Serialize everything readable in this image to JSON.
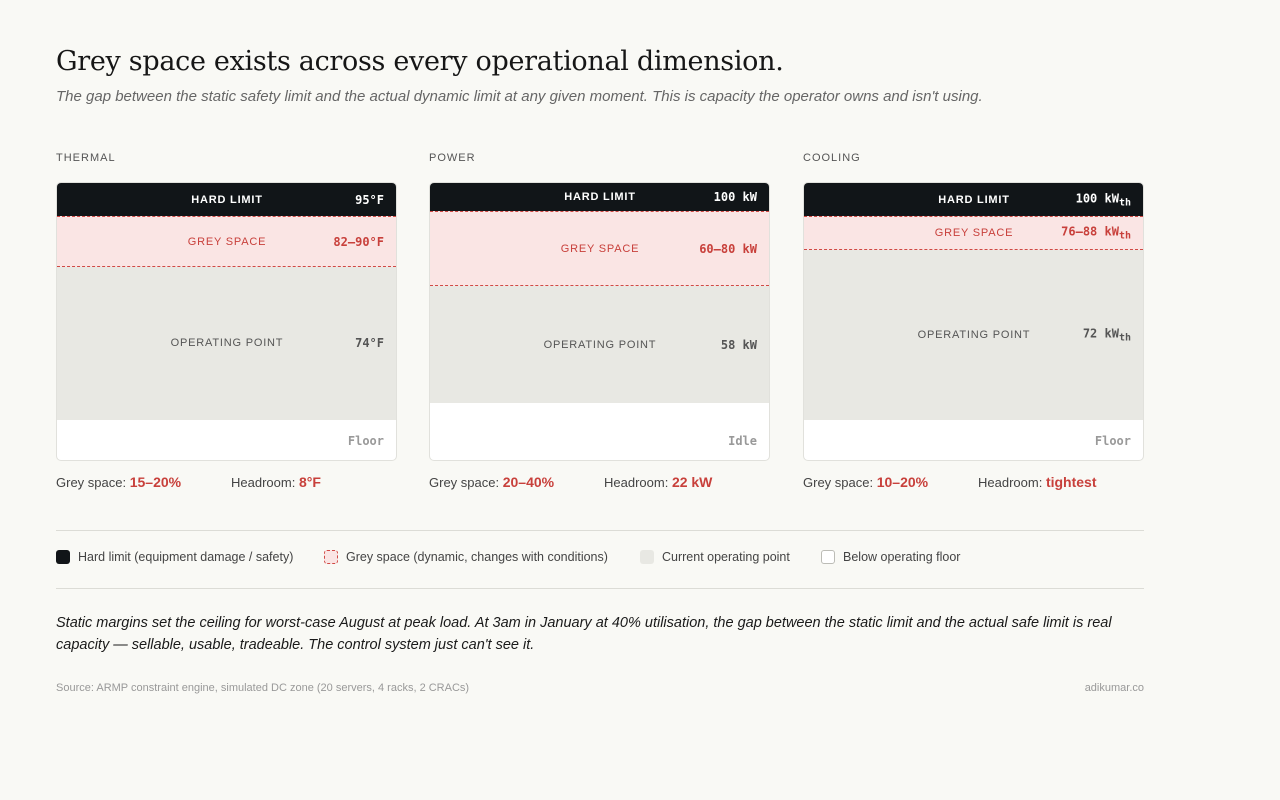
{
  "title": "Grey space exists across every operational dimension.",
  "subtitle": "The gap between the static safety limit and the actual dynamic limit at any given moment. This is capacity the operator owns and isn't using.",
  "band_labels": {
    "hard": "HARD LIMIT",
    "grey": "GREY SPACE",
    "operating": "OPERATING POINT"
  },
  "stat_labels": {
    "grey": "Grey space:",
    "headroom": "Headroom:"
  },
  "colors": {
    "hard_limit": "#111518",
    "grey_space_fill": "#fae5e4",
    "grey_space_line": "#d04a45",
    "operating": "#e8e8e3",
    "floor": "#ffffff",
    "accent_red": "#c8403b"
  },
  "chart_data": [
    {
      "type": "stacked-band",
      "panel": "THERMAL",
      "bands": [
        {
          "key": "hard",
          "value": "95°F"
        },
        {
          "key": "grey",
          "value": "82–90°F"
        },
        {
          "key": "operating",
          "value": "74°F"
        },
        {
          "key": "floor",
          "value": "Floor"
        }
      ],
      "band_fractions": {
        "hard": 0.12,
        "grey": 0.18,
        "operating": 0.55,
        "floor": 0.15
      },
      "grey_space": "15–20%",
      "headroom": "8°F"
    },
    {
      "type": "stacked-band",
      "panel": "POWER",
      "bands": [
        {
          "key": "hard",
          "value": "100 kW"
        },
        {
          "key": "grey",
          "value": "60–80 kW"
        },
        {
          "key": "operating",
          "value": "58 kW"
        },
        {
          "key": "floor",
          "value": "Idle"
        }
      ],
      "band_fractions": {
        "hard": 0.1,
        "grey": 0.27,
        "operating": 0.42,
        "floor": 0.21
      },
      "grey_space": "20–40%",
      "headroom": "22 kW"
    },
    {
      "type": "stacked-band",
      "panel": "COOLING",
      "bands": [
        {
          "key": "hard",
          "value": "100 kW",
          "sub": "th"
        },
        {
          "key": "grey",
          "value": "76–88 kW",
          "sub": "th"
        },
        {
          "key": "operating",
          "value": "72 kW",
          "sub": "th"
        },
        {
          "key": "floor",
          "value": "Floor"
        }
      ],
      "band_fractions": {
        "hard": 0.12,
        "grey": 0.12,
        "operating": 0.61,
        "floor": 0.15
      },
      "grey_space": "10–20%",
      "headroom": "tightest"
    }
  ],
  "legend": [
    {
      "swatch": "hard",
      "label": "Hard limit (equipment damage / safety)"
    },
    {
      "swatch": "grey",
      "label": "Grey space (dynamic, changes with conditions)"
    },
    {
      "swatch": "op",
      "label": "Current operating point"
    },
    {
      "swatch": "floor",
      "label": "Below operating floor"
    }
  ],
  "note": "Static margins set the ceiling for worst-case August at peak load. At 3am in January at 40% utilisation, the gap between the static limit and the actual safe limit is real capacity — sellable, usable, tradeable. The control system just can't see it.",
  "source": "Source: ARMP constraint engine, simulated DC zone (20 servers, 4 racks, 2 CRACs)",
  "credit": "adikumar.co"
}
